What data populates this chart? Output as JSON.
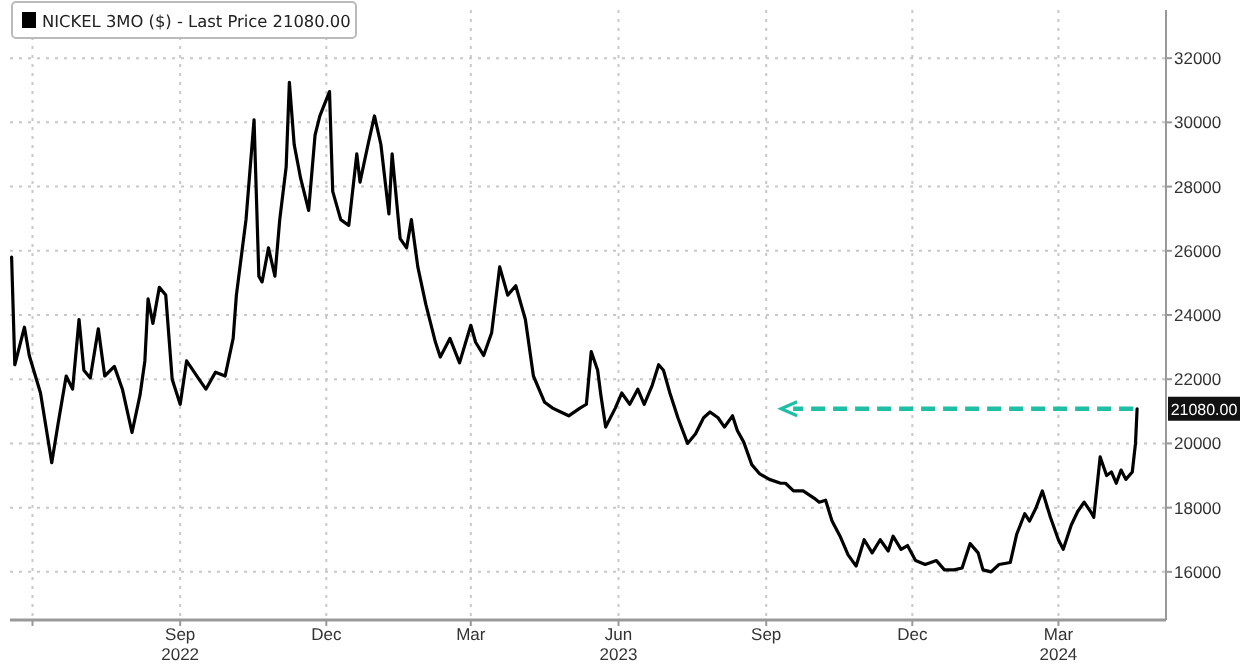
{
  "chart_data": {
    "type": "line",
    "legend": "top left",
    "grid": true,
    "marker": "none",
    "line_style": "solid",
    "xlim": [
      "2022-05-18",
      "2024-05-07"
    ],
    "ylim": [
      14500,
      33500
    ],
    "xticks": [
      {
        "value": "2022-06-01",
        "label": null
      },
      {
        "value": "2022-09-01",
        "label": "Sep\n2022"
      },
      {
        "value": "2022-12-01",
        "label": "Dec"
      },
      {
        "value": "2023-03-01",
        "label": "Mar"
      },
      {
        "value": "2023-06-01",
        "label": "Jun\n2023"
      },
      {
        "value": "2023-09-01",
        "label": "Sep"
      },
      {
        "value": "2023-12-01",
        "label": "Dec"
      },
      {
        "value": "2024-03-01",
        "label": "Mar\n2024"
      }
    ],
    "yticks": [
      16000,
      18000,
      20000,
      22000,
      24000,
      26000,
      28000,
      30000,
      32000
    ],
    "annotations": [
      {
        "text": "21080.00",
        "x": "2024-04-19",
        "y": 21080
      }
    ],
    "series": [
      {
        "name": "NICKEL 3MO ($) - Last Price 21080.00",
        "color": "#000000",
        "x": [
          "2022-05-19",
          "2022-05-21",
          "2022-05-27",
          "2022-05-30",
          "2022-06-06",
          "2022-06-13",
          "2022-06-17",
          "2022-06-22",
          "2022-06-26",
          "2022-06-30",
          "2022-07-03",
          "2022-07-07",
          "2022-07-12",
          "2022-07-16",
          "2022-07-22",
          "2022-07-27",
          "2022-08-02",
          "2022-08-07",
          "2022-08-10",
          "2022-08-12",
          "2022-08-15",
          "2022-08-19",
          "2022-08-23",
          "2022-08-27",
          "2022-09-01",
          "2022-09-05",
          "2022-09-13",
          "2022-09-17",
          "2022-09-23",
          "2022-09-29",
          "2022-10-01",
          "2022-10-04",
          "2022-10-06",
          "2022-10-12",
          "2022-10-17",
          "2022-10-20",
          "2022-10-22",
          "2022-10-26",
          "2022-10-30",
          "2022-11-02",
          "2022-11-06",
          "2022-11-08",
          "2022-11-11",
          "2022-11-15",
          "2022-11-20",
          "2022-11-24",
          "2022-11-27",
          "2022-12-03",
          "2022-12-05",
          "2022-12-10",
          "2022-12-15",
          "2022-12-20",
          "2022-12-22",
          "2022-12-27",
          "2022-12-31",
          "2023-01-04",
          "2023-01-09",
          "2023-01-11",
          "2023-01-16",
          "2023-01-20",
          "2023-01-23",
          "2023-01-27",
          "2023-02-01",
          "2023-02-07",
          "2023-02-10",
          "2023-02-16",
          "2023-02-22",
          "2023-03-01",
          "2023-03-04",
          "2023-03-09",
          "2023-03-14",
          "2023-03-19",
          "2023-03-24",
          "2023-03-29",
          "2023-04-04",
          "2023-04-09",
          "2023-04-16",
          "2023-04-21",
          "2023-04-26",
          "2023-05-01",
          "2023-05-08",
          "2023-05-12",
          "2023-05-15",
          "2023-05-19",
          "2023-05-21",
          "2023-05-24",
          "2023-05-30",
          "2023-06-03",
          "2023-06-08",
          "2023-06-13",
          "2023-06-17",
          "2023-06-22",
          "2023-06-26",
          "2023-06-29",
          "2023-07-03",
          "2023-07-08",
          "2023-07-14",
          "2023-07-19",
          "2023-07-24",
          "2023-07-28",
          "2023-08-02",
          "2023-08-06",
          "2023-08-11",
          "2023-08-14",
          "2023-08-18",
          "2023-08-23",
          "2023-08-28",
          "2023-09-03",
          "2023-09-10",
          "2023-09-13",
          "2023-09-18",
          "2023-09-24",
          "2023-10-01",
          "2023-10-04",
          "2023-10-08",
          "2023-10-12",
          "2023-10-17",
          "2023-10-22",
          "2023-10-27",
          "2023-11-01",
          "2023-11-06",
          "2023-11-11",
          "2023-11-16",
          "2023-11-19",
          "2023-11-24",
          "2023-11-28",
          "2023-12-03",
          "2023-12-09",
          "2023-12-16",
          "2023-12-21",
          "2023-12-27",
          "2024-01-01",
          "2024-01-06",
          "2024-01-11",
          "2024-01-14",
          "2024-01-19",
          "2024-01-24",
          "2024-01-31",
          "2024-02-04",
          "2024-02-09",
          "2024-02-12",
          "2024-02-16",
          "2024-02-20",
          "2024-02-25",
          "2024-03-01",
          "2024-03-04",
          "2024-03-09",
          "2024-03-13",
          "2024-03-17",
          "2024-03-21",
          "2024-03-23",
          "2024-03-27",
          "2024-03-31",
          "2024-04-03",
          "2024-04-06",
          "2024-04-09",
          "2024-04-12",
          "2024-04-16",
          "2024-04-18",
          "2024-04-19"
        ],
        "values": [
          25800,
          22450,
          23620,
          22740,
          21570,
          19400,
          20630,
          22100,
          21690,
          23860,
          22280,
          22040,
          23570,
          22100,
          22400,
          21690,
          20340,
          21510,
          22570,
          24500,
          23740,
          24860,
          24620,
          22000,
          21220,
          22570,
          21980,
          21690,
          22220,
          22100,
          22570,
          23270,
          24620,
          26970,
          30080,
          25210,
          25030,
          26090,
          25210,
          26970,
          28610,
          31250,
          29310,
          28260,
          27260,
          29600,
          30200,
          30960,
          27850,
          26970,
          26790,
          29020,
          28140,
          29310,
          30200,
          29310,
          27150,
          29020,
          26380,
          26090,
          26970,
          25500,
          24330,
          23150,
          22690,
          23270,
          22510,
          23680,
          23150,
          22740,
          23450,
          25500,
          24620,
          24910,
          23860,
          22100,
          21280,
          21100,
          20980,
          20860,
          21100,
          21220,
          22860,
          22280,
          21510,
          20510,
          21100,
          21570,
          21220,
          21690,
          21220,
          21810,
          22450,
          22280,
          21570,
          20800,
          20000,
          20300,
          20800,
          20980,
          20800,
          20510,
          20860,
          20400,
          20040,
          19340,
          19050,
          18880,
          18760,
          18760,
          18520,
          18520,
          18290,
          18170,
          18230,
          17580,
          17110,
          16530,
          16180,
          17000,
          16590,
          17000,
          16650,
          17110,
          16700,
          16820,
          16350,
          16230,
          16350,
          16060,
          16060,
          16120,
          16880,
          16590,
          16060,
          16000,
          16230,
          16290,
          17170,
          17810,
          17580,
          17990,
          18520,
          17700,
          17000,
          16700,
          17460,
          17880,
          18170,
          17880,
          17700,
          19580,
          19000,
          19110,
          18760,
          19170,
          18880,
          19110,
          20000,
          21080
        ]
      }
    ]
  }
}
